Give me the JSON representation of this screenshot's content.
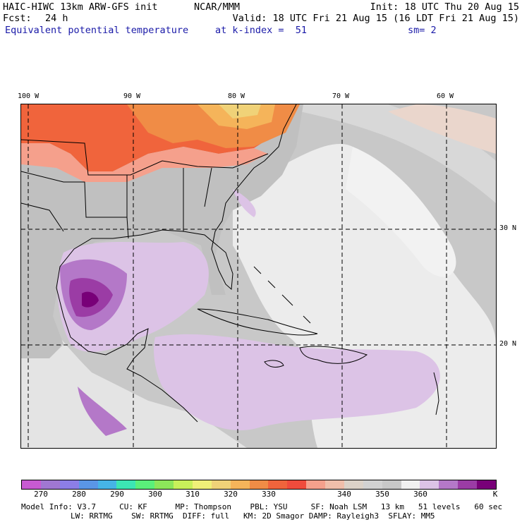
{
  "header": {
    "model": "HAIC-HIWC 13km ARW-GFS init",
    "org": "NCAR/MMM",
    "init": "Init: 18 UTC Thu 20 Aug 15",
    "fcst_label": "Fcst:",
    "fcst_value": "24 h",
    "valid": "Valid: 18 UTC Fri 21 Aug 15 (16 LDT Fri 21 Aug 15)",
    "field": "Equivalent potential temperature",
    "level": "at k-index =  51",
    "smooth": "sm= 2"
  },
  "map": {
    "lon_labels": [
      "100 W",
      "90 W",
      "80 W",
      "70 W",
      "60 W"
    ],
    "lat_labels": [
      "30 N",
      "20 N"
    ]
  },
  "colorbar": {
    "colors": [
      "#c85ad2",
      "#a077d2",
      "#8c7ee6",
      "#5a96e6",
      "#46b4e6",
      "#3ce6b4",
      "#5af07a",
      "#8ce65a",
      "#c8f05a",
      "#f0f078",
      "#f0d278",
      "#f5b45a",
      "#f08c46",
      "#f0643c",
      "#f04b3c",
      "#f5a08c",
      "#f0beaa",
      "#dcd2c8",
      "#d2d2d2",
      "#c8c8c8",
      "#f0f0f0",
      "#dcc3e6",
      "#b478c8",
      "#9b3ca5",
      "#780078"
    ],
    "labels": [
      "270",
      "280",
      "290",
      "300",
      "310",
      "320",
      "330",
      "340",
      "350",
      "360",
      "K"
    ]
  },
  "footer": {
    "line1": "Model Info: V3.7     CU: KF      MP: Thompson    PBL: YSU     SF: Noah LSM   13 km   51 levels   60 sec",
    "line2": "LW: RRTMG    SW: RRTMG  DIFF: full   KM: 2D Smagor DAMP: Rayleigh3  SFLAY: MM5"
  }
}
